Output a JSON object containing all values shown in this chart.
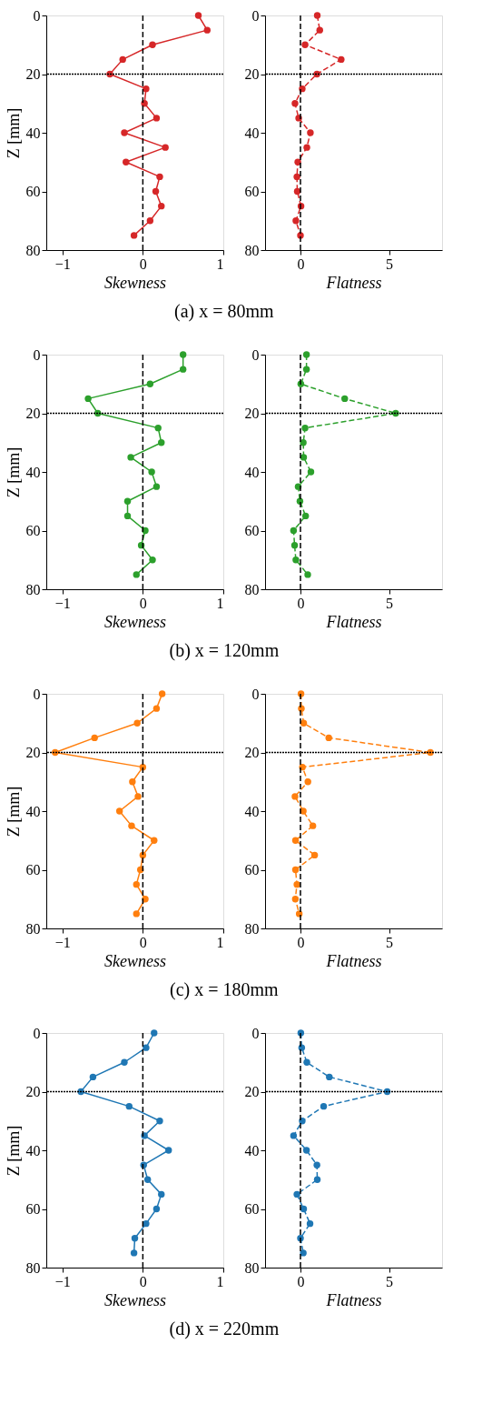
{
  "chart_data": [
    {
      "type": "line",
      "xlabel": "Skewness",
      "ylabel": "Z [mm]",
      "annotations": [
        "(a) x = 80mm"
      ],
      "marker": "circle",
      "line_style": "solid",
      "xlim": [
        -1.2,
        1
      ],
      "xticks": [
        -1,
        0,
        1
      ],
      "ylim": [
        80,
        0
      ],
      "yticks": [
        0,
        20,
        40,
        60,
        80
      ],
      "grid": false,
      "series": [
        {
          "color": "#d62728",
          "x": [
            0.69,
            0.8,
            0.12,
            -0.25,
            -0.41,
            0.04,
            0.02,
            0.17,
            -0.23,
            0.28,
            -0.21,
            0.21,
            0.16,
            0.23,
            0.09,
            -0.11
          ],
          "values": [
            0,
            5,
            10,
            15,
            20,
            25,
            30,
            35,
            40,
            45,
            50,
            55,
            60,
            65,
            70,
            75
          ]
        }
      ],
      "ref_lines": [
        {
          "axis": "x",
          "value": 0,
          "color": "#000000",
          "line_style": "dashed"
        },
        {
          "axis": "y",
          "value": 20,
          "color": "#000000",
          "line_style": "dotted"
        }
      ]
    },
    {
      "type": "line",
      "xlabel": "Flatness",
      "marker": "circle",
      "line_style": "dashed",
      "xlim": [
        -2,
        8
      ],
      "xticks": [
        0,
        5
      ],
      "ylim": [
        80,
        0
      ],
      "yticks": [
        0,
        20,
        40,
        60,
        80
      ],
      "grid": false,
      "series": [
        {
          "color": "#d62728",
          "x": [
            0.95,
            1.09,
            0.26,
            2.3,
            0.93,
            0.1,
            -0.31,
            -0.1,
            0.56,
            0.36,
            -0.15,
            -0.2,
            -0.18,
            0.03,
            -0.26,
            0.0
          ],
          "values": [
            0,
            5,
            10,
            15,
            20,
            25,
            30,
            35,
            40,
            45,
            50,
            55,
            60,
            65,
            70,
            75
          ]
        }
      ],
      "ref_lines": [
        {
          "axis": "x",
          "value": 0,
          "color": "#000000",
          "line_style": "dashed"
        },
        {
          "axis": "y",
          "value": 20,
          "color": "#000000",
          "line_style": "dotted"
        }
      ]
    },
    {
      "type": "line",
      "xlabel": "Skewness",
      "ylabel": "Z [mm]",
      "annotations": [
        "(b) x = 120mm"
      ],
      "marker": "circle",
      "line_style": "solid",
      "xlim": [
        -1.2,
        1
      ],
      "xticks": [
        -1,
        0,
        1
      ],
      "ylim": [
        80,
        0
      ],
      "yticks": [
        0,
        20,
        40,
        60,
        80
      ],
      "grid": false,
      "series": [
        {
          "color": "#2ca02c",
          "x": [
            0.5,
            0.5,
            0.09,
            -0.68,
            -0.56,
            0.19,
            0.23,
            -0.15,
            0.11,
            0.17,
            -0.19,
            -0.19,
            0.03,
            -0.02,
            0.12,
            -0.08
          ],
          "values": [
            0,
            5,
            10,
            15,
            20,
            25,
            30,
            35,
            40,
            45,
            50,
            55,
            60,
            65,
            70,
            75
          ]
        }
      ],
      "ref_lines": [
        {
          "axis": "x",
          "value": 0,
          "color": "#000000",
          "line_style": "dashed"
        },
        {
          "axis": "y",
          "value": 20,
          "color": "#000000",
          "line_style": "dotted"
        }
      ]
    },
    {
      "type": "line",
      "xlabel": "Flatness",
      "marker": "circle",
      "line_style": "dashed",
      "xlim": [
        -2,
        8
      ],
      "xticks": [
        0,
        5
      ],
      "ylim": [
        80,
        0
      ],
      "yticks": [
        0,
        20,
        40,
        60,
        80
      ],
      "grid": false,
      "series": [
        {
          "color": "#2ca02c",
          "x": [
            0.34,
            0.34,
            0.02,
            2.5,
            5.38,
            0.26,
            0.16,
            0.18,
            0.59,
            -0.13,
            -0.03,
            0.29,
            -0.39,
            -0.33,
            -0.26,
            0.41
          ],
          "values": [
            0,
            5,
            10,
            15,
            20,
            25,
            30,
            35,
            40,
            45,
            50,
            55,
            60,
            65,
            70,
            75
          ]
        }
      ],
      "ref_lines": [
        {
          "axis": "x",
          "value": 0,
          "color": "#000000",
          "line_style": "dashed"
        },
        {
          "axis": "y",
          "value": 20,
          "color": "#000000",
          "line_style": "dotted"
        }
      ]
    },
    {
      "type": "line",
      "xlabel": "Skewness",
      "ylabel": "Z [mm]",
      "annotations": [
        "(c) x = 180mm"
      ],
      "marker": "circle",
      "line_style": "solid",
      "xlim": [
        -1.2,
        1
      ],
      "xticks": [
        -1,
        0,
        1
      ],
      "ylim": [
        80,
        0
      ],
      "yticks": [
        0,
        20,
        40,
        60,
        80
      ],
      "grid": false,
      "series": [
        {
          "color": "#ff7f0e",
          "x": [
            0.24,
            0.17,
            -0.07,
            -0.6,
            -1.09,
            0.0,
            -0.13,
            -0.06,
            -0.29,
            -0.14,
            0.14,
            0.0,
            -0.03,
            -0.08,
            0.03,
            -0.08
          ],
          "values": [
            0,
            5,
            10,
            15,
            20,
            25,
            30,
            35,
            40,
            45,
            50,
            55,
            60,
            65,
            70,
            75
          ]
        }
      ],
      "ref_lines": [
        {
          "axis": "x",
          "value": 0,
          "color": "#000000",
          "line_style": "dashed"
        },
        {
          "axis": "y",
          "value": 20,
          "color": "#000000",
          "line_style": "dotted"
        }
      ]
    },
    {
      "type": "line",
      "xlabel": "Flatness",
      "marker": "circle",
      "line_style": "dashed",
      "xlim": [
        -2,
        8
      ],
      "xticks": [
        0,
        5
      ],
      "ylim": [
        80,
        0
      ],
      "yticks": [
        0,
        20,
        40,
        60,
        80
      ],
      "grid": false,
      "series": [
        {
          "color": "#ff7f0e",
          "x": [
            0.03,
            0.05,
            0.18,
            1.6,
            7.34,
            0.11,
            0.42,
            -0.31,
            0.16,
            0.7,
            -0.28,
            0.8,
            -0.28,
            -0.2,
            -0.29,
            -0.07
          ],
          "values": [
            0,
            5,
            10,
            15,
            20,
            25,
            30,
            35,
            40,
            45,
            50,
            55,
            60,
            65,
            70,
            75
          ]
        }
      ],
      "ref_lines": [
        {
          "axis": "x",
          "value": 0,
          "color": "#000000",
          "line_style": "dashed"
        },
        {
          "axis": "y",
          "value": 20,
          "color": "#000000",
          "line_style": "dotted"
        }
      ]
    },
    {
      "type": "line",
      "xlabel": "Skewness",
      "ylabel": "Z [mm]",
      "annotations": [
        "(d) x = 220mm"
      ],
      "marker": "circle",
      "line_style": "solid",
      "xlim": [
        -1.2,
        1
      ],
      "xticks": [
        -1,
        0,
        1
      ],
      "ylim": [
        80,
        0
      ],
      "yticks": [
        0,
        20,
        40,
        60,
        80
      ],
      "grid": false,
      "series": [
        {
          "color": "#1f77b4",
          "x": [
            0.14,
            0.04,
            -0.23,
            -0.62,
            -0.77,
            -0.17,
            0.21,
            0.02,
            0.32,
            0.01,
            0.06,
            0.23,
            0.17,
            0.04,
            -0.1,
            -0.11
          ],
          "values": [
            0,
            5,
            10,
            15,
            20,
            25,
            30,
            35,
            40,
            45,
            50,
            55,
            60,
            65,
            70,
            75
          ]
        }
      ],
      "ref_lines": [
        {
          "axis": "x",
          "value": 0,
          "color": "#000000",
          "line_style": "dashed"
        },
        {
          "axis": "y",
          "value": 20,
          "color": "#000000",
          "line_style": "dotted"
        }
      ]
    },
    {
      "type": "line",
      "xlabel": "Flatness",
      "marker": "circle",
      "line_style": "dashed",
      "xlim": [
        -2,
        8
      ],
      "xticks": [
        0,
        5
      ],
      "ylim": [
        80,
        0
      ],
      "yticks": [
        0,
        20,
        40,
        60,
        80
      ],
      "grid": false,
      "series": [
        {
          "color": "#1f77b4",
          "x": [
            0.02,
            0.07,
            0.36,
            1.63,
            4.9,
            1.31,
            0.1,
            -0.39,
            0.34,
            0.93,
            0.95,
            -0.2,
            0.18,
            0.54,
            0.0,
            0.16
          ],
          "values": [
            0,
            5,
            10,
            15,
            20,
            25,
            30,
            35,
            40,
            45,
            50,
            55,
            60,
            65,
            70,
            75
          ]
        }
      ],
      "ref_lines": [
        {
          "axis": "x",
          "value": 0,
          "color": "#000000",
          "line_style": "dashed"
        },
        {
          "axis": "y",
          "value": 20,
          "color": "#000000",
          "line_style": "dotted"
        }
      ]
    }
  ]
}
